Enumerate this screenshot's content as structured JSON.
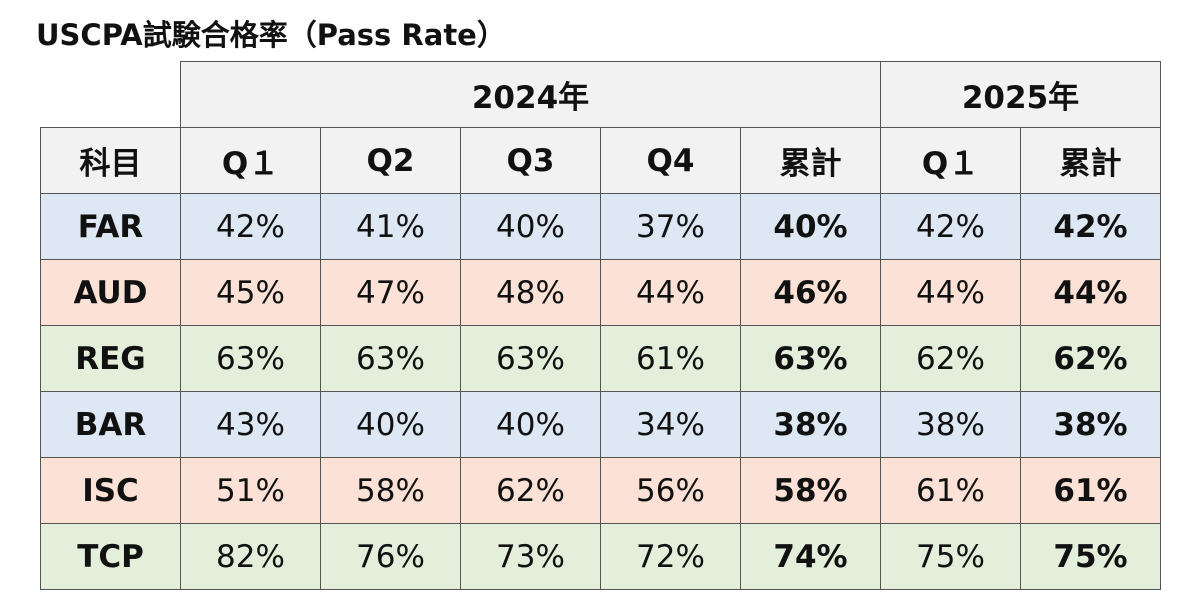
{
  "title": "USCPA試験合格率（Pass Rate）",
  "chart_data": {
    "type": "table",
    "title": "USCPA試験合格率（Pass Rate）",
    "year_groups": [
      {
        "label": "2024年",
        "span": 5
      },
      {
        "label": "2025年",
        "span": 2
      }
    ],
    "header": {
      "subject_label": "科目",
      "columns": [
        "Q１",
        "Q2",
        "Q3",
        "Q4",
        "累計",
        "Q１",
        "累計"
      ]
    },
    "rows": [
      {
        "subject": "FAR",
        "values": [
          "42%",
          "41%",
          "40%",
          "37%",
          "40%",
          "42%",
          "42%"
        ],
        "color": "#dde8f4"
      },
      {
        "subject": "AUD",
        "values": [
          "45%",
          "47%",
          "48%",
          "44%",
          "46%",
          "44%",
          "44%"
        ],
        "color": "#fbe1d6"
      },
      {
        "subject": "REG",
        "values": [
          "63%",
          "63%",
          "63%",
          "61%",
          "63%",
          "62%",
          "62%"
        ],
        "color": "#e3efda"
      },
      {
        "subject": "BAR",
        "values": [
          "43%",
          "40%",
          "40%",
          "34%",
          "38%",
          "38%",
          "38%"
        ],
        "color": "#dde8f4"
      },
      {
        "subject": "ISC",
        "values": [
          "51%",
          "58%",
          "62%",
          "56%",
          "58%",
          "61%",
          "61%"
        ],
        "color": "#fbe1d6"
      },
      {
        "subject": "TCP",
        "values": [
          "82%",
          "76%",
          "73%",
          "72%",
          "74%",
          "75%",
          "75%"
        ],
        "color": "#e3efda"
      }
    ],
    "bold_columns": [
      4,
      6
    ]
  }
}
